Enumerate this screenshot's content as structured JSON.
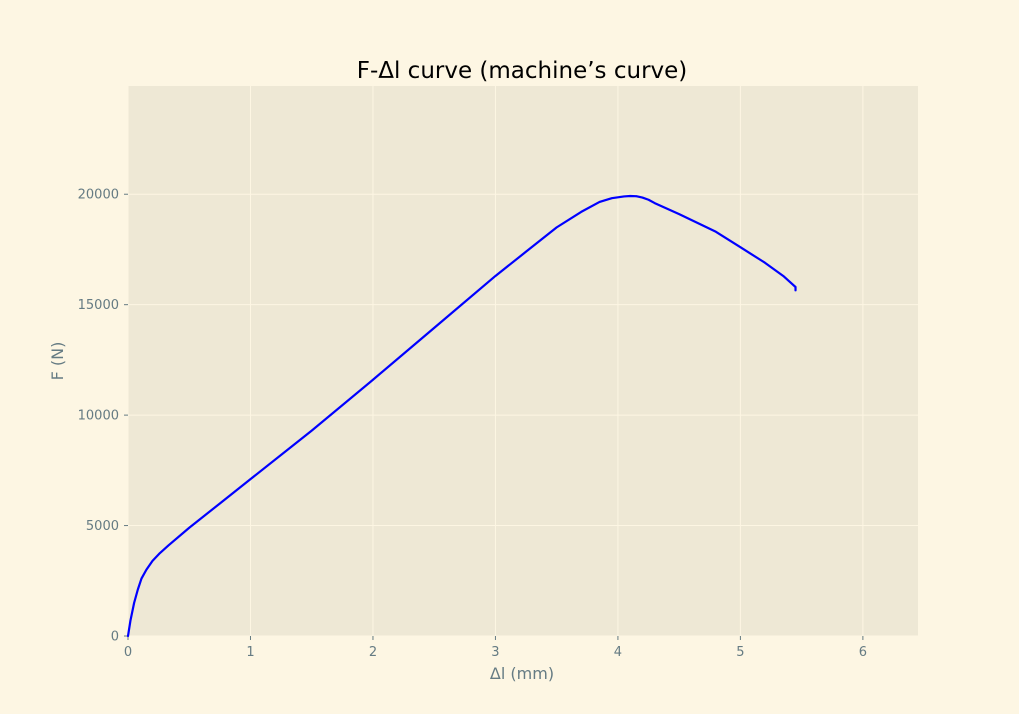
{
  "chart_data": {
    "type": "line",
    "title": "F-Δl curve (machine’s curve)",
    "xlabel": "Δl (mm)",
    "ylabel": "F (N)",
    "xlim": [
      0,
      6.45
    ],
    "ylim": [
      0,
      24900
    ],
    "xticks": [
      0,
      1,
      2,
      3,
      4,
      5,
      6
    ],
    "yticks": [
      0,
      5000,
      10000,
      15000,
      20000
    ],
    "grid": true,
    "colors": {
      "figure_background": "#fdf6e3",
      "plot_background": "#eee8d5",
      "grid": "#fdf6e3",
      "text": "#657b83",
      "series": "#0000ff"
    },
    "series": [
      {
        "values_x": [
          0.0,
          0.02,
          0.05,
          0.08,
          0.11,
          0.15,
          0.2,
          0.26,
          0.33,
          0.5,
          0.75,
          1.0,
          1.5,
          2.0,
          2.5,
          3.0,
          3.25,
          3.5,
          3.7,
          3.85,
          3.95,
          4.05,
          4.1,
          4.15,
          4.2,
          4.25,
          4.3,
          4.5,
          4.8,
          5.0,
          5.2,
          5.35,
          5.42,
          5.45,
          5.45
        ],
        "values_y": [
          0,
          700,
          1500,
          2100,
          2600,
          3000,
          3400,
          3750,
          4100,
          4900,
          6000,
          7100,
          9300,
          11600,
          13950,
          16300,
          17400,
          18500,
          19200,
          19650,
          19820,
          19900,
          19920,
          19910,
          19850,
          19750,
          19600,
          19100,
          18300,
          17600,
          16900,
          16300,
          15950,
          15800,
          15650
        ]
      }
    ]
  }
}
